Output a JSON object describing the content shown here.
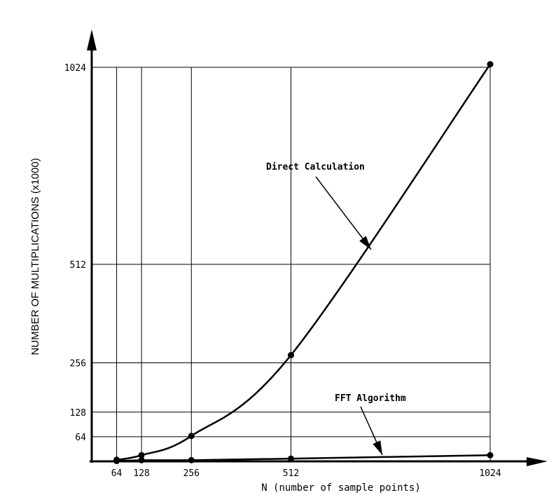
{
  "chart_data": {
    "type": "line",
    "xlabel": "N (number of sample points)",
    "ylabel": "NUMBER OF MULTIPLICATIONS (x1000)",
    "x_ticks": [
      64,
      128,
      256,
      512,
      1024
    ],
    "y_ticks": [
      64,
      128,
      256,
      512,
      1024
    ],
    "xlim": [
      0,
      1024
    ],
    "ylim": [
      0,
      1024
    ],
    "grid": true,
    "series": [
      {
        "name": "Direct Calculation",
        "x": [
          64,
          128,
          256,
          512,
          1024
        ],
        "y": [
          4,
          16,
          66,
          276,
          1032
        ]
      },
      {
        "name": "FFT Algorithm",
        "x": [
          64,
          128,
          256,
          512,
          1024
        ],
        "y": [
          1,
          3,
          3,
          7,
          16
        ]
      }
    ],
    "annotations": [
      {
        "text": "Direct Calculation",
        "points_to_series": 0
      },
      {
        "text": "FFT Algorithm",
        "points_to_series": 1
      }
    ]
  }
}
